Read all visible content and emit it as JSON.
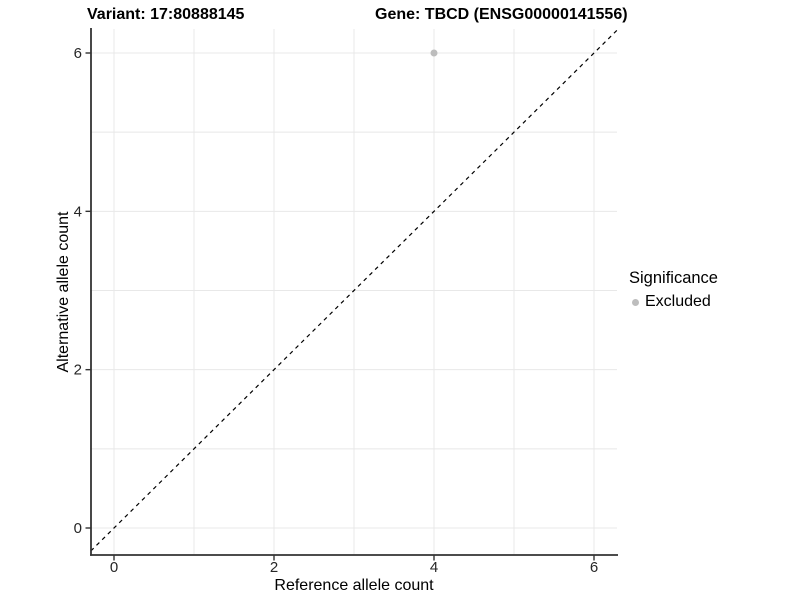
{
  "header": {
    "variant_title": "Variant: 17:80888145",
    "gene_title": "Gene: TBCD (ENSG00000141556)"
  },
  "axes": {
    "x": {
      "title": "Reference allele count",
      "tick_labels": [
        "0",
        "2",
        "4",
        "6"
      ]
    },
    "y": {
      "title": "Alternative allele count",
      "tick_labels": [
        "0",
        "2",
        "4",
        "6"
      ]
    }
  },
  "legend": {
    "title": "Significance",
    "items": [
      {
        "label": "Excluded",
        "color": "#bdbdbd",
        "marker": "dot-icon"
      }
    ]
  },
  "chart_data": {
    "type": "scatter",
    "title": "Variant: 17:80888145    Gene: TBCD (ENSG00000141556)",
    "xlabel": "Reference allele count",
    "ylabel": "Alternative allele count",
    "xlim": [
      -0.29,
      6.29
    ],
    "ylim": [
      -0.33,
      6.31
    ],
    "x_ticks": [
      0,
      2,
      4,
      6
    ],
    "y_ticks": [
      0,
      2,
      4,
      6
    ],
    "minor_ticks": [
      1,
      3,
      5
    ],
    "grid": true,
    "legend_position": "right",
    "series": [
      {
        "name": "Excluded",
        "color": "#bdbdbd",
        "points": [
          {
            "x": 4,
            "y": 6
          }
        ]
      }
    ],
    "reference_line": {
      "kind": "abline",
      "slope": 1,
      "intercept": 0,
      "style": "dashed",
      "color": "#000000"
    }
  },
  "colors": {
    "background": "#ffffff",
    "gridline": "#e8e8e8",
    "axis_line": "#333333",
    "excluded_point": "#bdbdbd",
    "dashed_line": "#000000"
  }
}
